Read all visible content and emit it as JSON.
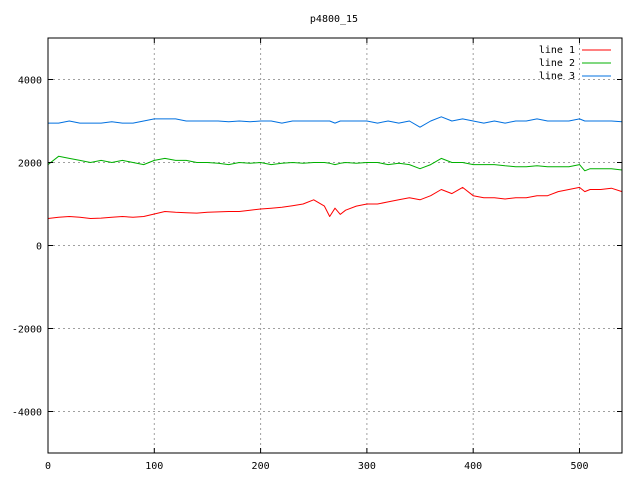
{
  "chart_data": {
    "type": "line",
    "title": "p4800_15",
    "xlabel": "",
    "ylabel": "",
    "xlim": [
      0,
      540
    ],
    "ylim": [
      -5000,
      5000
    ],
    "xticks": [
      0,
      100,
      200,
      300,
      400,
      500
    ],
    "yticks": [
      -4000,
      -2000,
      0,
      2000,
      4000
    ],
    "grid": true,
    "legend_position": "top-right",
    "x": [
      0,
      10,
      20,
      30,
      40,
      50,
      60,
      70,
      80,
      90,
      100,
      110,
      120,
      130,
      140,
      150,
      160,
      170,
      180,
      190,
      200,
      210,
      220,
      230,
      240,
      250,
      260,
      265,
      270,
      275,
      280,
      290,
      300,
      310,
      320,
      330,
      340,
      350,
      360,
      370,
      380,
      390,
      400,
      410,
      420,
      430,
      440,
      450,
      460,
      470,
      480,
      490,
      500,
      505,
      510,
      520,
      530,
      540
    ],
    "series": [
      {
        "name": "line 1",
        "color": "#ff0000",
        "values": [
          650,
          680,
          700,
          680,
          650,
          660,
          680,
          700,
          680,
          700,
          760,
          820,
          800,
          790,
          780,
          800,
          810,
          820,
          820,
          850,
          880,
          900,
          920,
          960,
          1000,
          1100,
          950,
          700,
          900,
          750,
          850,
          950,
          1000,
          1000,
          1050,
          1100,
          1150,
          1100,
          1200,
          1350,
          1250,
          1400,
          1200,
          1150,
          1150,
          1120,
          1150,
          1150,
          1200,
          1200,
          1300,
          1350,
          1400,
          1300,
          1350,
          1350,
          1380,
          1300
        ]
      },
      {
        "name": "line 2",
        "color": "#00b000",
        "values": [
          1950,
          2150,
          2100,
          2050,
          2000,
          2050,
          2000,
          2050,
          2000,
          1950,
          2050,
          2100,
          2050,
          2050,
          2000,
          2000,
          1980,
          1950,
          2000,
          1980,
          2000,
          1950,
          1980,
          2000,
          1980,
          2000,
          2000,
          1980,
          1950,
          1980,
          2000,
          1980,
          2000,
          2000,
          1950,
          1980,
          1950,
          1850,
          1950,
          2100,
          2000,
          2000,
          1950,
          1950,
          1950,
          1920,
          1900,
          1900,
          1920,
          1900,
          1900,
          1900,
          1950,
          1800,
          1850,
          1850,
          1850,
          1820
        ]
      },
      {
        "name": "line 3",
        "color": "#0070e0",
        "values": [
          2950,
          2950,
          3000,
          2950,
          2950,
          2950,
          2980,
          2950,
          2950,
          3000,
          3050,
          3050,
          3050,
          3000,
          3000,
          3000,
          3000,
          2980,
          3000,
          2980,
          3000,
          3000,
          2950,
          3000,
          3000,
          3000,
          3000,
          3000,
          2950,
          3000,
          3000,
          3000,
          3000,
          2950,
          3000,
          2950,
          3000,
          2850,
          3000,
          3100,
          3000,
          3050,
          3000,
          2950,
          3000,
          2950,
          3000,
          3000,
          3050,
          3000,
          3000,
          3000,
          3050,
          3000,
          3000,
          3000,
          3000,
          2980
        ]
      }
    ]
  }
}
